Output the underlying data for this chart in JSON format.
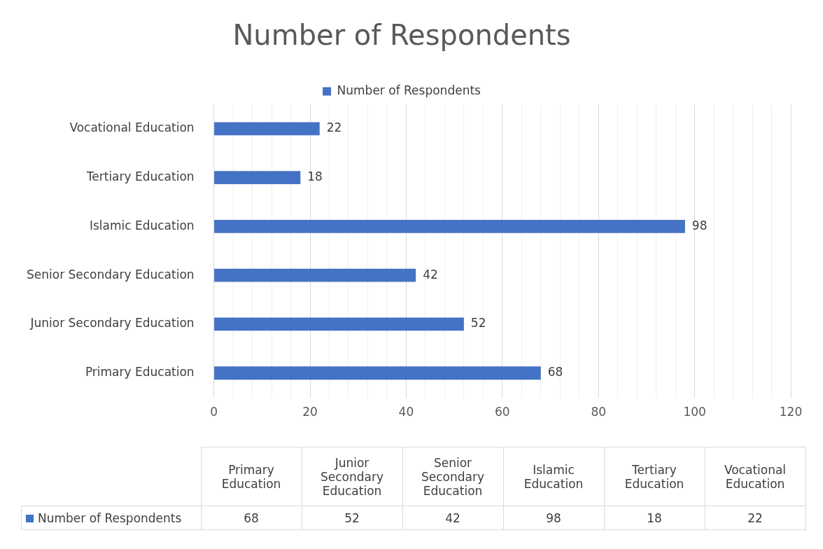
{
  "chart_data": {
    "type": "bar",
    "orientation": "horizontal",
    "title": "Number of Respondents",
    "categories": [
      "Vocational Education",
      "Tertiary Education",
      "Islamic Education",
      "Senior Secondary Education",
      "Junior Secondary Education",
      "Primary Education"
    ],
    "series": [
      {
        "name": "Number of Respondents",
        "color": "#4472c4",
        "values": [
          22,
          18,
          98,
          42,
          52,
          68
        ],
        "value_labels": [
          "22",
          "18",
          "98",
          "42",
          "52",
          "68"
        ]
      }
    ],
    "xlim": [
      0,
      120
    ],
    "xticks": [
      0,
      {
        "value": 4,
        "label": null
      },
      {
        "value": 8,
        "label": null
      },
      {
        "value": 12,
        "label": null
      },
      {
        "value": 16,
        "label": null
      },
      20,
      {
        "value": 24,
        "label": null
      },
      {
        "value": 28,
        "label": null
      },
      {
        "value": 32,
        "label": null
      },
      {
        "value": 36,
        "label": null
      },
      40,
      {
        "value": 44,
        "label": null
      },
      {
        "value": 48,
        "label": null
      },
      {
        "value": 52,
        "label": null
      },
      {
        "value": 56,
        "label": null
      },
      60,
      {
        "value": 64,
        "label": null
      },
      {
        "value": 68,
        "label": null
      },
      {
        "value": 72,
        "label": null
      },
      {
        "value": 76,
        "label": null
      },
      80,
      {
        "value": 84,
        "label": null
      },
      {
        "value": 88,
        "label": null
      },
      {
        "value": 92,
        "label": null
      },
      {
        "value": 96,
        "label": null
      },
      100,
      {
        "value": 104,
        "label": null
      },
      {
        "value": 108,
        "label": null
      },
      {
        "value": 112,
        "label": null
      },
      {
        "value": 116,
        "label": null
      },
      120
    ],
    "grid": "x",
    "legend": "top"
  }
}
